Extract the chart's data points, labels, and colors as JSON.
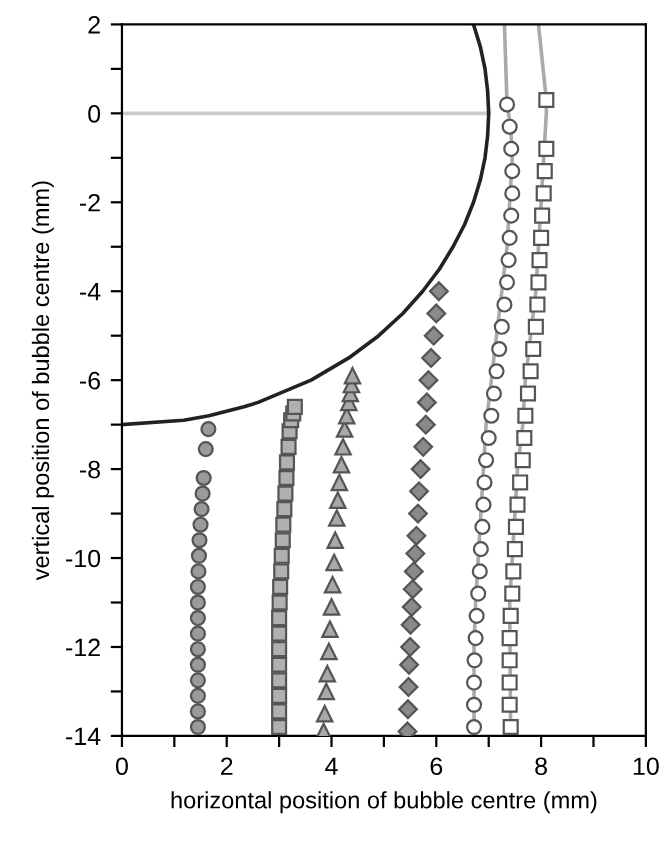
{
  "chart_data": {
    "type": "scatter",
    "xlabel": "horizontal position of bubble centre (mm)",
    "ylabel": "vertical position of bubble centre (mm)",
    "xlim": [
      0,
      10
    ],
    "ylim": [
      -14,
      2
    ],
    "xticks": [
      0,
      {
        "value": 1,
        "label": null
      },
      2,
      {
        "value": 3,
        "label": null
      },
      4,
      {
        "value": 5,
        "label": null
      },
      6,
      {
        "value": 7,
        "label": null
      },
      8,
      {
        "value": 9,
        "label": null
      },
      10
    ],
    "yticks": [
      -14,
      {
        "value": -13,
        "label": null
      },
      -12,
      {
        "value": -11,
        "label": null
      },
      -10,
      {
        "value": -9,
        "label": null
      },
      -8,
      {
        "value": -7,
        "label": null
      },
      -6,
      {
        "value": -5,
        "label": null
      },
      -4,
      {
        "value": -3,
        "label": null
      },
      -2,
      {
        "value": -1,
        "label": null
      },
      0,
      {
        "value": 1,
        "label": null
      },
      2
    ],
    "grid": false,
    "legend": false,
    "series": [
      {
        "type": "line",
        "color": "#cccccc",
        "x": [
          0,
          7
        ],
        "values": [
          0,
          0
        ]
      },
      {
        "type": "line",
        "color": "#222222",
        "x": [
          0,
          1.18,
          1.66,
          2.33,
          2.6,
          3.61,
          4.33,
          4.9,
          5.36,
          5.74,
          6.06,
          6.32,
          6.54,
          6.71,
          6.84,
          6.93,
          6.98,
          7,
          6.98,
          6.93,
          6.84,
          6.71
        ],
        "values": [
          -7,
          -6.9,
          -6.8,
          -6.6,
          -6.5,
          -6,
          -5.5,
          -5,
          -4.5,
          -4,
          -3.5,
          -3,
          -2.5,
          -2,
          -1.5,
          -1,
          -0.5,
          0,
          0.5,
          1,
          1.5,
          2
        ]
      },
      {
        "type": "line",
        "color": "#aaaaaa",
        "x": [
          6.72,
          6.72,
          6.75,
          6.8,
          6.85,
          6.9,
          6.95,
          7.05,
          7.15,
          7.25,
          7.35,
          7.4,
          7.45,
          7.42,
          7.35,
          7.3
        ],
        "values": [
          -14,
          -12,
          -11,
          -10,
          -9,
          -8,
          -7,
          -6,
          -5,
          -4,
          -3,
          -2,
          -1,
          -0.3,
          0.2,
          2
        ]
      },
      {
        "type": "line",
        "color": "#aaaaaa",
        "x": [
          7.42,
          7.4,
          7.45,
          7.5,
          7.55,
          7.65,
          7.7,
          7.8,
          7.9,
          7.95,
          8.0,
          8.05,
          8.1,
          8.1,
          7.95
        ],
        "values": [
          -14,
          -11,
          -10,
          -9,
          -8,
          -7,
          -6,
          -5,
          -4,
          -3,
          -2,
          -1,
          0,
          0.3,
          2
        ]
      },
      {
        "marker": "circle",
        "color": "#9a9a9a",
        "x": [
          1.45,
          1.45,
          1.45,
          1.45,
          1.45,
          1.45,
          1.45,
          1.45,
          1.45,
          1.45,
          1.46,
          1.47,
          1.48,
          1.5,
          1.52,
          1.54,
          1.56,
          1.6,
          1.65
        ],
        "values": [
          -13.8,
          -13.45,
          -13.1,
          -12.75,
          -12.4,
          -12.05,
          -11.7,
          -11.35,
          -11,
          -10.65,
          -10.3,
          -9.95,
          -9.6,
          -9.25,
          -8.9,
          -8.55,
          -8.2,
          -7.55,
          -7.1
        ]
      },
      {
        "marker": "square",
        "color": "#b0b0b0",
        "x": [
          3.0,
          3.0,
          3.0,
          3.0,
          3.0,
          3.0,
          3.0,
          3.0,
          3.01,
          3.02,
          3.04,
          3.05,
          3.07,
          3.08,
          3.1,
          3.12,
          3.14,
          3.15,
          3.18,
          3.2,
          3.23,
          3.27,
          3.3
        ],
        "values": [
          -13.8,
          -13.45,
          -13.1,
          -12.75,
          -12.4,
          -12.05,
          -11.7,
          -11.35,
          -11,
          -10.65,
          -10.3,
          -9.95,
          -9.6,
          -9.25,
          -8.9,
          -8.55,
          -8.2,
          -7.85,
          -7.5,
          -7.15,
          -6.9,
          -6.75,
          -6.6
        ]
      },
      {
        "marker": "triangle",
        "color": "#a8a8a8",
        "x": [
          3.85,
          3.87,
          3.9,
          3.92,
          3.95,
          3.97,
          4.0,
          4.02,
          4.05,
          4.07,
          4.1,
          4.12,
          4.15,
          4.19,
          4.22,
          4.25,
          4.29,
          4.33,
          4.36,
          4.38,
          4.4
        ],
        "values": [
          -13.9,
          -13.5,
          -13.0,
          -12.6,
          -12.1,
          -11.6,
          -11.1,
          -10.6,
          -10.1,
          -9.6,
          -9.1,
          -8.7,
          -8.3,
          -7.9,
          -7.5,
          -7.1,
          -6.8,
          -6.5,
          -6.3,
          -6.1,
          -5.9
        ]
      },
      {
        "marker": "diamond",
        "color": "#8a8a8a",
        "x": [
          5.45,
          5.46,
          5.47,
          5.48,
          5.5,
          5.51,
          5.53,
          5.55,
          5.57,
          5.6,
          5.62,
          5.65,
          5.67,
          5.7,
          5.75,
          5.8,
          5.82,
          5.85,
          5.9,
          5.95,
          6.0,
          6.05
        ],
        "values": [
          -13.9,
          -13.4,
          -12.9,
          -12.4,
          -12.0,
          -11.5,
          -11.1,
          -10.7,
          -10.3,
          -9.9,
          -9.5,
          -9.0,
          -8.5,
          -8.0,
          -7.5,
          -7.0,
          -6.5,
          -6.0,
          -5.5,
          -5.0,
          -4.5,
          -4.0
        ]
      },
      {
        "marker": "circle",
        "color": "#ffffff",
        "x": [
          6.72,
          6.72,
          6.72,
          6.73,
          6.75,
          6.77,
          6.8,
          6.83,
          6.85,
          6.88,
          6.9,
          6.92,
          6.95,
          7.0,
          7.05,
          7.1,
          7.15,
          7.2,
          7.25,
          7.3,
          7.35,
          7.38,
          7.4,
          7.43,
          7.45,
          7.45,
          7.43,
          7.4,
          7.35
        ],
        "values": [
          -13.8,
          -13.3,
          -12.8,
          -12.3,
          -11.8,
          -11.3,
          -10.8,
          -10.3,
          -9.8,
          -9.3,
          -8.8,
          -8.3,
          -7.8,
          -7.3,
          -6.8,
          -6.3,
          -5.8,
          -5.3,
          -4.8,
          -4.3,
          -3.8,
          -3.3,
          -2.8,
          -2.3,
          -1.8,
          -1.3,
          -0.8,
          -0.3,
          0.2
        ]
      },
      {
        "marker": "square",
        "color": "#ffffff",
        "x": [
          7.42,
          7.4,
          7.4,
          7.4,
          7.4,
          7.42,
          7.45,
          7.47,
          7.5,
          7.52,
          7.55,
          7.6,
          7.65,
          7.68,
          7.7,
          7.75,
          7.8,
          7.85,
          7.9,
          7.93,
          7.95,
          7.97,
          8.0,
          8.02,
          8.05,
          8.07,
          8.1,
          8.1
        ],
        "values": [
          -13.8,
          -13.3,
          -12.8,
          -12.3,
          -11.8,
          -11.3,
          -10.8,
          -10.3,
          -9.8,
          -9.3,
          -8.8,
          -8.3,
          -7.8,
          -7.3,
          -6.8,
          -6.3,
          -5.8,
          -5.3,
          -4.8,
          -4.3,
          -3.8,
          -3.3,
          -2.8,
          -2.3,
          -1.8,
          -1.3,
          -0.8,
          0.3
        ]
      }
    ]
  }
}
